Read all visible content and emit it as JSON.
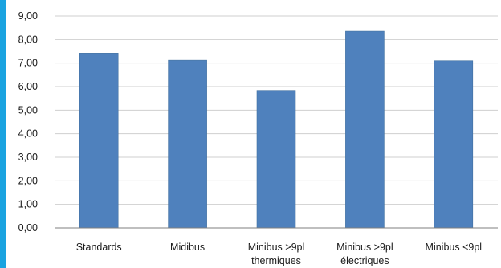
{
  "chart_data": {
    "type": "bar",
    "title": "",
    "xlabel": "",
    "ylabel": "",
    "categories": [
      [
        "Standards"
      ],
      [
        "Midibus"
      ],
      [
        "Minibus >9pl",
        "thermiques"
      ],
      [
        "Minibus >9pl",
        "électriques"
      ],
      [
        "Minibus <9pl"
      ]
    ],
    "values": [
      7.42,
      7.12,
      5.84,
      8.35,
      7.1
    ],
    "ylim": [
      0,
      9
    ],
    "yticks": [
      "0,00",
      "1,00",
      "2,00",
      "3,00",
      "4,00",
      "5,00",
      "6,00",
      "7,00",
      "8,00",
      "9,00"
    ],
    "grid": true,
    "legend": "none"
  },
  "colors": {
    "bar": "#4f81bd",
    "bar_edge": "#41709f",
    "grid": "#cfcfcf",
    "axis": "#7f7f7f",
    "accent": "#1aa3e0"
  }
}
